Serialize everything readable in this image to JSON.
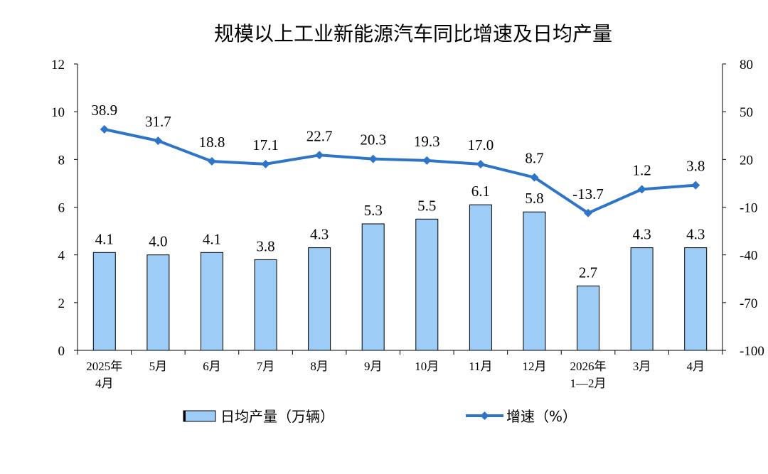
{
  "chart_data": {
    "type": "bar",
    "title": "规模以上工业新能源汽车同比增速及日均产量",
    "categories": [
      [
        "2025年",
        "4月"
      ],
      [
        "5月"
      ],
      [
        "6月"
      ],
      [
        "7月"
      ],
      [
        "8月"
      ],
      [
        "9月"
      ],
      [
        "10月"
      ],
      [
        "11月"
      ],
      [
        "12月"
      ],
      [
        "2026年",
        "1—2月"
      ],
      [
        "3月"
      ],
      [
        "4月"
      ]
    ],
    "series": [
      {
        "name": "日均产量（万辆）",
        "type": "bar",
        "axis": "left",
        "color": "#9dcdf7",
        "values": [
          4.1,
          4.0,
          4.1,
          3.8,
          4.3,
          5.3,
          5.5,
          6.1,
          5.8,
          2.7,
          4.3,
          4.3
        ],
        "labels": [
          "4.1",
          "4.0",
          "4.1",
          "3.8",
          "4.3",
          "5.3",
          "5.5",
          "6.1",
          "5.8",
          "2.7",
          "4.3",
          "4.3"
        ]
      },
      {
        "name": "增速（%）",
        "type": "line",
        "axis": "right",
        "color": "#2e75c8",
        "values": [
          38.9,
          31.7,
          18.8,
          17.1,
          22.7,
          20.3,
          19.3,
          17.0,
          8.7,
          -13.7,
          1.2,
          3.8
        ],
        "labels": [
          "38.9",
          "31.7",
          "18.8",
          "17.1",
          "22.7",
          "20.3",
          "19.3",
          "17.0",
          "8.7",
          "-13.7",
          "1.2",
          "3.8"
        ]
      }
    ],
    "y_left": {
      "range": [
        0,
        12
      ],
      "ticks": [
        "0",
        "2",
        "4",
        "6",
        "8",
        "10",
        "12"
      ]
    },
    "y_right": {
      "range": [
        -100,
        80
      ],
      "ticks": [
        "-100",
        "-70",
        "-40",
        "-10",
        "20",
        "50",
        "80"
      ]
    },
    "grid": false,
    "legend_position": "bottom"
  }
}
